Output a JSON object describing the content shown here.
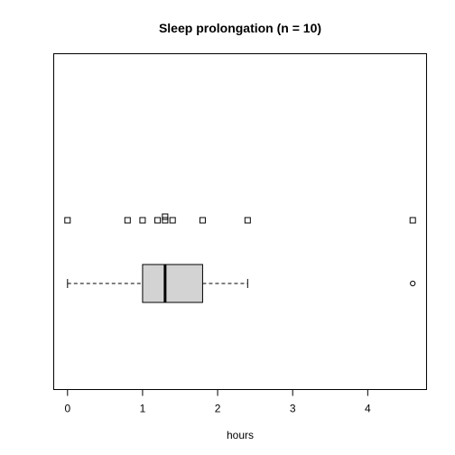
{
  "chart_data": {
    "type": "boxplot",
    "title": "Sleep prolongation (n = 10)",
    "xlabel": "hours",
    "ylabel": "",
    "xlim": [
      -0.184,
      4.784
    ],
    "xticks": [
      "0",
      "1",
      "2",
      "3",
      "4"
    ],
    "grid": false,
    "strip_values": [
      0.0,
      0.8,
      1.0,
      1.2,
      1.3,
      1.3,
      1.4,
      1.8,
      2.4,
      4.6
    ],
    "box": {
      "whisker_low": 0.0,
      "q1": 1.0,
      "median": 1.3,
      "q3": 1.8,
      "whisker_high": 2.4,
      "outliers": [
        4.6
      ]
    },
    "colors": {
      "box_fill": "#d3d3d3",
      "line": "#000000"
    }
  }
}
